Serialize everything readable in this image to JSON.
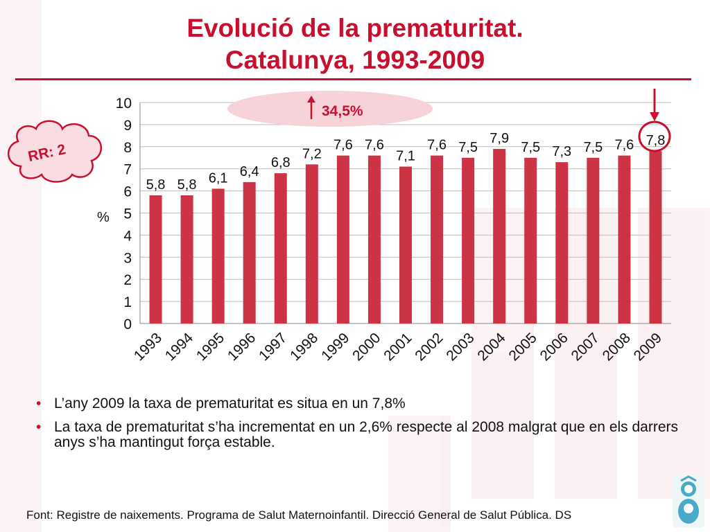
{
  "slide": {
    "title_line1": "Evolució de la prematuritat.",
    "title_line2": "Catalunya, 1993-2009",
    "increase_label": "34,5%",
    "rr_label": "RR: 2",
    "bullets": [
      "L’any 2009 la taxa de prematuritat es situa en un 7,8%",
      "La taxa de prematuritat s’ha incrementat en un 2,6% respecte al 2008 malgrat que en els darrers anys s’ha mantingut força estable."
    ],
    "footer": "Font: Registre de naixements. Programa de Salut Maternoinfantil. Direcció General de Salut Pública. DS",
    "colors": {
      "bar": "#cc3344",
      "accent": "#c8102e",
      "bubble": "#f7d3d9",
      "cloud_fill": "#f9dde2"
    },
    "icons": {
      "increase": "up-arrow-icon",
      "highlight": "down-arrow-icon",
      "logo": "baby-logo-icon"
    }
  },
  "chart_data": {
    "type": "bar",
    "categories": [
      "1993",
      "1994",
      "1995",
      "1996",
      "1997",
      "1998",
      "1999",
      "2000",
      "2001",
      "2002",
      "2003",
      "2004",
      "2005",
      "2006",
      "2007",
      "2008",
      "2009"
    ],
    "values": [
      5.8,
      5.8,
      6.1,
      6.4,
      6.8,
      7.2,
      7.6,
      7.6,
      7.1,
      7.6,
      7.5,
      7.9,
      7.5,
      7.3,
      7.5,
      7.6,
      7.8
    ],
    "data_labels": [
      "5,8",
      "5,8",
      "6,1",
      "6,4",
      "6,8",
      "7,2",
      "7,6",
      "7,6",
      "7,1",
      "7,6",
      "7,5",
      "7,9",
      "7,5",
      "7,3",
      "7,5",
      "7,6",
      "7,8"
    ],
    "ylabel": "%",
    "ylim": [
      0,
      10
    ],
    "yticks": [
      0,
      1,
      2,
      3,
      4,
      5,
      6,
      7,
      8,
      9,
      10
    ],
    "grid": true,
    "highlight_category": "2009"
  }
}
